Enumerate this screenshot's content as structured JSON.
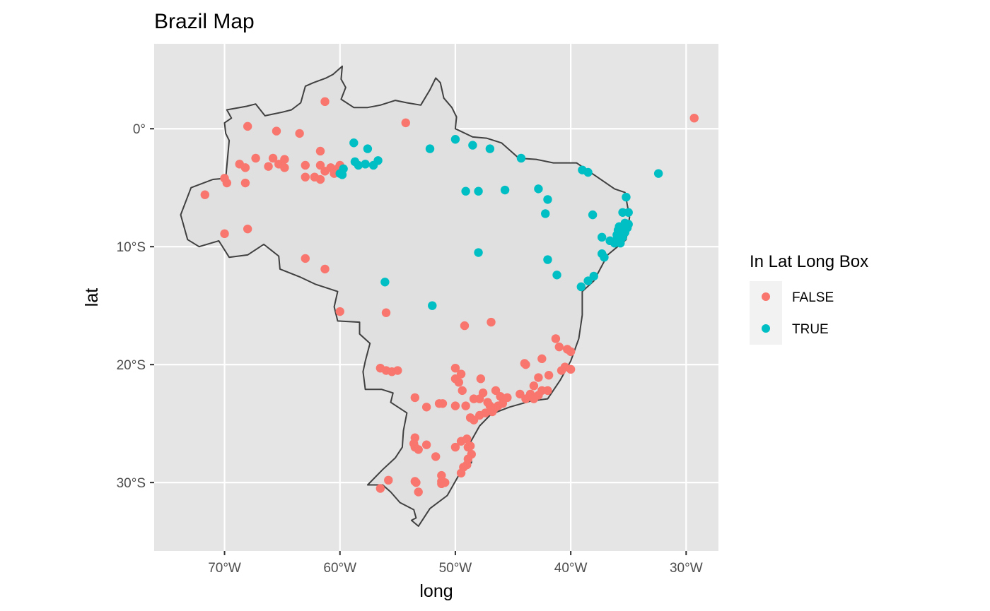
{
  "chart_data": {
    "type": "scatter",
    "title": "Brazil Map",
    "xlabel": "long",
    "ylabel": "lat",
    "xlim": [
      -76.1,
      -27.2
    ],
    "ylim": [
      -35.8,
      7.2
    ],
    "x_ticks": [
      -70,
      -60,
      -50,
      -40,
      -30
    ],
    "x_tick_labels": [
      "70°W",
      "60°W",
      "50°W",
      "40°W",
      "30°W"
    ],
    "y_ticks": [
      0,
      -10,
      -20,
      -30
    ],
    "y_tick_labels": [
      "0°",
      "10°S",
      "20°S",
      "30°S"
    ],
    "grid": true,
    "legend": {
      "title": "In Lat Long Box",
      "position": "right",
      "entries": [
        {
          "label": "FALSE",
          "color": "#F8766D"
        },
        {
          "label": "TRUE",
          "color": "#00BFC4"
        }
      ]
    },
    "colors": {
      "panel_background": "#E5E5E5",
      "gridline": "#FFFFFF",
      "border": "#404040",
      "country_fill": "#E0E0E0",
      "legend_key_background": "#F2F2F2"
    },
    "border_outline": [
      [
        -73.8,
        -7.3
      ],
      [
        -72.9,
        -5.0
      ],
      [
        -71.0,
        -4.3
      ],
      [
        -69.9,
        -4.2
      ],
      [
        -69.6,
        -1.0
      ],
      [
        -69.9,
        -0.4
      ],
      [
        -70.0,
        0.5
      ],
      [
        -69.4,
        0.9
      ],
      [
        -69.8,
        1.6
      ],
      [
        -68.1,
        1.9
      ],
      [
        -67.3,
        2.1
      ],
      [
        -66.5,
        1.1
      ],
      [
        -65.0,
        1.4
      ],
      [
        -64.2,
        1.6
      ],
      [
        -63.4,
        2.2
      ],
      [
        -63.0,
        3.6
      ],
      [
        -62.3,
        3.9
      ],
      [
        -61.2,
        4.3
      ],
      [
        -60.6,
        4.6
      ],
      [
        -59.8,
        5.3
      ],
      [
        -59.9,
        4.2
      ],
      [
        -59.5,
        3.5
      ],
      [
        -59.9,
        2.5
      ],
      [
        -58.8,
        1.8
      ],
      [
        -57.6,
        1.8
      ],
      [
        -56.5,
        2.0
      ],
      [
        -55.2,
        2.4
      ],
      [
        -54.2,
        2.2
      ],
      [
        -53.0,
        2.0
      ],
      [
        -52.2,
        3.3
      ],
      [
        -51.7,
        4.3
      ],
      [
        -51.3,
        3.9
      ],
      [
        -51.0,
        2.6
      ],
      [
        -50.3,
        1.8
      ],
      [
        -49.9,
        1.0
      ],
      [
        -50.0,
        0.0
      ],
      [
        -48.5,
        -0.7
      ],
      [
        -47.3,
        -0.8
      ],
      [
        -46.0,
        -1.2
      ],
      [
        -44.5,
        -2.5
      ],
      [
        -43.0,
        -2.6
      ],
      [
        -41.5,
        -2.9
      ],
      [
        -39.5,
        -2.9
      ],
      [
        -38.0,
        -3.9
      ],
      [
        -36.2,
        -5.1
      ],
      [
        -35.3,
        -5.4
      ],
      [
        -34.9,
        -7.5
      ],
      [
        -35.2,
        -9.4
      ],
      [
        -36.8,
        -10.7
      ],
      [
        -38.0,
        -12.9
      ],
      [
        -39.0,
        -13.8
      ],
      [
        -39.0,
        -15.8
      ],
      [
        -39.3,
        -17.8
      ],
      [
        -40.0,
        -19.7
      ],
      [
        -40.9,
        -21.3
      ],
      [
        -42.0,
        -22.9
      ],
      [
        -43.5,
        -23.1
      ],
      [
        -45.3,
        -23.6
      ],
      [
        -46.9,
        -24.2
      ],
      [
        -47.9,
        -25.2
      ],
      [
        -48.7,
        -26.6
      ],
      [
        -48.6,
        -28.3
      ],
      [
        -49.6,
        -29.2
      ],
      [
        -50.7,
        -31.1
      ],
      [
        -52.2,
        -32.2
      ],
      [
        -53.2,
        -33.7
      ],
      [
        -53.8,
        -33.2
      ],
      [
        -53.4,
        -33.0
      ],
      [
        -53.6,
        -32.3
      ],
      [
        -54.8,
        -31.7
      ],
      [
        -55.6,
        -30.8
      ],
      [
        -56.3,
        -30.2
      ],
      [
        -57.6,
        -30.2
      ],
      [
        -56.3,
        -28.9
      ],
      [
        -55.2,
        -27.9
      ],
      [
        -54.6,
        -27.0
      ],
      [
        -54.5,
        -25.6
      ],
      [
        -54.2,
        -24.1
      ],
      [
        -55.6,
        -23.2
      ],
      [
        -55.4,
        -22.4
      ],
      [
        -56.4,
        -22.1
      ],
      [
        -57.8,
        -22.1
      ],
      [
        -58.0,
        -20.6
      ],
      [
        -57.8,
        -19.7
      ],
      [
        -57.4,
        -18.2
      ],
      [
        -58.3,
        -17.4
      ],
      [
        -58.3,
        -16.4
      ],
      [
        -60.2,
        -16.3
      ],
      [
        -60.5,
        -15.1
      ],
      [
        -60.2,
        -13.8
      ],
      [
        -62.1,
        -13.2
      ],
      [
        -63.4,
        -12.6
      ],
      [
        -65.2,
        -11.9
      ],
      [
        -65.3,
        -10.8
      ],
      [
        -66.6,
        -9.8
      ],
      [
        -68.0,
        -10.7
      ],
      [
        -69.6,
        -10.9
      ],
      [
        -70.5,
        -9.5
      ],
      [
        -72.2,
        -10.0
      ],
      [
        -73.2,
        -9.4
      ],
      [
        -73.8,
        -7.3
      ]
    ],
    "series": [
      {
        "name": "FALSE",
        "color": "#F8766D",
        "points": [
          [
            -61.3,
            2.3
          ],
          [
            -54.3,
            0.5
          ],
          [
            -68.0,
            0.2
          ],
          [
            -65.5,
            -0.2
          ],
          [
            -63.5,
            -0.4
          ],
          [
            -71.7,
            -5.6
          ],
          [
            -70.0,
            -4.2
          ],
          [
            -69.8,
            -4.6
          ],
          [
            -68.7,
            -3.0
          ],
          [
            -68.2,
            -3.3
          ],
          [
            -67.3,
            -2.5
          ],
          [
            -66.2,
            -3.2
          ],
          [
            -65.8,
            -2.5
          ],
          [
            -65.3,
            -3.0
          ],
          [
            -64.8,
            -3.3
          ],
          [
            -64.8,
            -2.6
          ],
          [
            -63.0,
            -3.1
          ],
          [
            -62.2,
            -4.1
          ],
          [
            -61.7,
            -1.9
          ],
          [
            -61.7,
            -3.1
          ],
          [
            -61.3,
            -3.6
          ],
          [
            -60.8,
            -3.3
          ],
          [
            -60.5,
            -3.8
          ],
          [
            -60.2,
            -3.4
          ],
          [
            -60.0,
            -3.1
          ],
          [
            -63.0,
            -4.1
          ],
          [
            -61.7,
            -4.3
          ],
          [
            -68.2,
            -4.6
          ],
          [
            -70.0,
            -8.9
          ],
          [
            -68.0,
            -8.5
          ],
          [
            -63.0,
            -11.0
          ],
          [
            -61.3,
            -11.9
          ],
          [
            -60.0,
            -15.5
          ],
          [
            -56.0,
            -15.6
          ],
          [
            -49.2,
            -16.7
          ],
          [
            -46.9,
            -16.4
          ],
          [
            -56.5,
            -20.3
          ],
          [
            -56.0,
            -20.5
          ],
          [
            -55.5,
            -20.6
          ],
          [
            -55.0,
            -20.5
          ],
          [
            -50.0,
            -20.3
          ],
          [
            -49.5,
            -20.8
          ],
          [
            -50.0,
            -21.2
          ],
          [
            -49.7,
            -21.5
          ],
          [
            -47.8,
            -21.2
          ],
          [
            -49.4,
            -22.2
          ],
          [
            -47.6,
            -22.4
          ],
          [
            -46.5,
            -22.2
          ],
          [
            -46.1,
            -22.7
          ],
          [
            -53.5,
            -22.8
          ],
          [
            -52.5,
            -23.6
          ],
          [
            -51.4,
            -23.3
          ],
          [
            -51.1,
            -23.3
          ],
          [
            -50.0,
            -23.5
          ],
          [
            -49.1,
            -23.5
          ],
          [
            -48.4,
            -22.9
          ],
          [
            -47.9,
            -22.9
          ],
          [
            -47.2,
            -23.2
          ],
          [
            -47.0,
            -23.5
          ],
          [
            -46.6,
            -23.7
          ],
          [
            -46.3,
            -23.5
          ],
          [
            -45.9,
            -23.3
          ],
          [
            -45.5,
            -22.8
          ],
          [
            -47.9,
            -24.3
          ],
          [
            -48.4,
            -24.7
          ],
          [
            -48.7,
            -24.5
          ],
          [
            -47.4,
            -24.1
          ],
          [
            -46.8,
            -24.0
          ],
          [
            -44.4,
            -22.5
          ],
          [
            -43.9,
            -22.9
          ],
          [
            -43.5,
            -22.5
          ],
          [
            -43.2,
            -22.9
          ],
          [
            -42.8,
            -22.6
          ],
          [
            -42.5,
            -22.2
          ],
          [
            -42.0,
            -22.2
          ],
          [
            -43.2,
            -21.8
          ],
          [
            -42.8,
            -21.1
          ],
          [
            -41.9,
            -20.9
          ],
          [
            -44.0,
            -19.9
          ],
          [
            -43.9,
            -20.0
          ],
          [
            -42.5,
            -19.5
          ],
          [
            -41.3,
            -17.8
          ],
          [
            -41.0,
            -18.5
          ],
          [
            -40.3,
            -18.7
          ],
          [
            -40.0,
            -18.9
          ],
          [
            -40.5,
            -20.2
          ],
          [
            -40.8,
            -20.5
          ],
          [
            -40.0,
            -20.4
          ],
          [
            -53.5,
            -26.2
          ],
          [
            -53.6,
            -26.7
          ],
          [
            -53.5,
            -27.0
          ],
          [
            -53.2,
            -27.2
          ],
          [
            -52.5,
            -26.8
          ],
          [
            -51.7,
            -27.8
          ],
          [
            -50.0,
            -27.0
          ],
          [
            -49.5,
            -26.5
          ],
          [
            -49.0,
            -26.3
          ],
          [
            -48.9,
            -27.0
          ],
          [
            -48.7,
            -26.9
          ],
          [
            -48.6,
            -27.6
          ],
          [
            -48.9,
            -28.0
          ],
          [
            -49.0,
            -28.5
          ],
          [
            -49.3,
            -28.7
          ],
          [
            -49.5,
            -29.2
          ],
          [
            -51.2,
            -29.4
          ],
          [
            -51.2,
            -29.9
          ],
          [
            -50.9,
            -30.0
          ],
          [
            -51.2,
            -30.1
          ],
          [
            -53.4,
            -30.0
          ],
          [
            -53.2,
            -30.8
          ],
          [
            -56.5,
            -30.5
          ],
          [
            -55.8,
            -29.8
          ],
          [
            -53.5,
            -29.9
          ]
        ]
      },
      {
        "name": "TRUE",
        "color": "#00BFC4",
        "points": [
          [
            -58.8,
            -1.2
          ],
          [
            -57.6,
            -1.7
          ],
          [
            -58.7,
            -2.8
          ],
          [
            -58.4,
            -3.1
          ],
          [
            -57.8,
            -3.0
          ],
          [
            -57.1,
            -3.1
          ],
          [
            -56.7,
            -2.7
          ],
          [
            -60.0,
            -3.8
          ],
          [
            -59.8,
            -3.9
          ],
          [
            -59.7,
            -3.4
          ],
          [
            -52.2,
            -1.7
          ],
          [
            -50.0,
            -0.9
          ],
          [
            -48.5,
            -1.4
          ],
          [
            -47.0,
            -1.7
          ],
          [
            -44.3,
            -2.5
          ],
          [
            -49.1,
            -5.3
          ],
          [
            -48.0,
            -5.3
          ],
          [
            -45.7,
            -5.2
          ],
          [
            -42.8,
            -5.1
          ],
          [
            -42.0,
            -6.0
          ],
          [
            -42.2,
            -7.2
          ],
          [
            -39.0,
            -3.5
          ],
          [
            -38.5,
            -3.7
          ],
          [
            -32.4,
            -3.8
          ],
          [
            -35.2,
            -5.8
          ],
          [
            -35.0,
            -7.1
          ],
          [
            -35.5,
            -7.1
          ],
          [
            -38.1,
            -7.3
          ],
          [
            -37.3,
            -9.2
          ],
          [
            -36.6,
            -9.5
          ],
          [
            -36.2,
            -9.7
          ],
          [
            -36.0,
            -9.4
          ],
          [
            -35.7,
            -9.7
          ],
          [
            -35.7,
            -8.9
          ],
          [
            -35.5,
            -9.2
          ],
          [
            -35.3,
            -8.8
          ],
          [
            -35.1,
            -8.4
          ],
          [
            -35.0,
            -8.1
          ],
          [
            -35.3,
            -8.0
          ],
          [
            -35.8,
            -8.3
          ],
          [
            -35.9,
            -8.6
          ],
          [
            -36.0,
            -9.0
          ],
          [
            -37.3,
            -10.6
          ],
          [
            -37.1,
            -10.9
          ],
          [
            -38.5,
            -12.9
          ],
          [
            -38.0,
            -12.5
          ],
          [
            -39.1,
            -13.4
          ],
          [
            -41.2,
            -12.4
          ],
          [
            -42.0,
            -11.1
          ],
          [
            -48.0,
            -10.5
          ],
          [
            -56.1,
            -13.0
          ],
          [
            -52.0,
            -15.0
          ]
        ]
      }
    ],
    "outlier_points": [
      {
        "series": "FALSE",
        "point": [
          -29.3,
          0.9
        ]
      }
    ]
  }
}
